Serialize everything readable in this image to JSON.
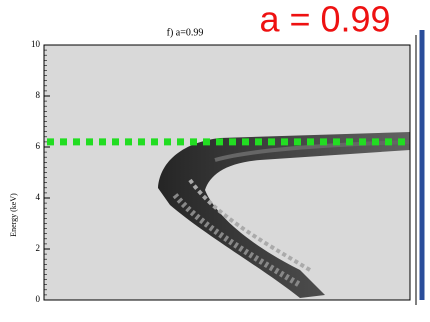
{
  "chart_data": {
    "type": "image",
    "title": "f) a=0.99",
    "annotation": "a = 0.99",
    "y_label": "Energy (keV)",
    "ylim": [
      0,
      10
    ],
    "yticks": [
      0,
      2,
      4,
      6,
      8,
      10
    ],
    "hline": {
      "value": 6.2,
      "color": "#22dd22"
    }
  }
}
